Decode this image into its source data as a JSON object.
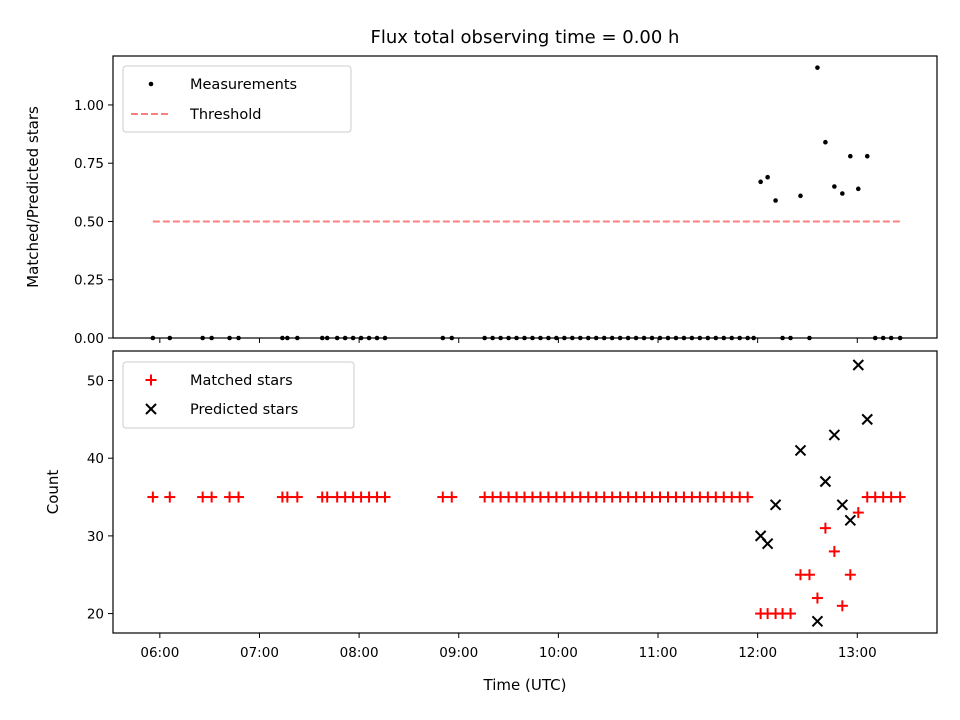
{
  "chart_data": [
    {
      "type": "scatter",
      "title": "Flux total observing time = 0.00 h",
      "xlabel": "",
      "ylabel": "Matched/Predicted stars",
      "xlim": [
        5.53,
        13.8
      ],
      "ylim": [
        0.0,
        1.21
      ],
      "yticks": [
        0.0,
        0.25,
        0.5,
        0.75,
        1.0
      ],
      "ytick_labels": [
        "0.00",
        "0.25",
        "0.50",
        "0.75",
        "1.00"
      ],
      "legend": {
        "position": "top-left",
        "entries": [
          "Measurements",
          "Threshold"
        ]
      },
      "series": [
        {
          "name": "Measurements",
          "marker": "dot",
          "color": "#000000",
          "x": [
            5.93,
            6.1,
            6.43,
            6.52,
            6.7,
            6.79,
            7.23,
            7.28,
            7.38,
            7.63,
            7.68,
            7.78,
            7.86,
            7.94,
            8.02,
            8.1,
            8.18,
            8.26,
            8.84,
            8.93,
            9.26,
            9.34,
            9.42,
            9.5,
            9.58,
            9.66,
            9.74,
            9.82,
            9.9,
            9.98,
            10.06,
            10.14,
            10.22,
            10.3,
            10.38,
            10.46,
            10.54,
            10.62,
            10.7,
            10.78,
            10.86,
            10.94,
            11.02,
            11.1,
            11.18,
            11.26,
            11.34,
            11.42,
            11.5,
            11.58,
            11.66,
            11.74,
            11.82,
            11.9,
            11.96,
            12.03,
            12.1,
            12.18,
            12.25,
            12.33,
            12.43,
            12.52,
            12.6,
            12.68,
            12.77,
            12.85,
            12.93,
            13.01,
            13.1,
            13.18,
            13.26,
            13.34,
            13.43
          ],
          "y": [
            0.0,
            0.0,
            0.0,
            0.0,
            0.0,
            0.0,
            0.0,
            0.0,
            0.0,
            0.0,
            0.0,
            0.0,
            0.0,
            0.0,
            0.0,
            0.0,
            0.0,
            0.0,
            0.0,
            0.0,
            0.0,
            0.0,
            0.0,
            0.0,
            0.0,
            0.0,
            0.0,
            0.0,
            0.0,
            0.0,
            0.0,
            0.0,
            0.0,
            0.0,
            0.0,
            0.0,
            0.0,
            0.0,
            0.0,
            0.0,
            0.0,
            0.0,
            0.0,
            0.0,
            0.0,
            0.0,
            0.0,
            0.0,
            0.0,
            0.0,
            0.0,
            0.0,
            0.0,
            0.0,
            0.0,
            0.67,
            0.69,
            0.59,
            0.0,
            0.0,
            0.61,
            0.0,
            1.16,
            0.84,
            0.65,
            0.62,
            0.78,
            0.64,
            0.78,
            0.0,
            0.0,
            0.0,
            0.0
          ]
        },
        {
          "name": "Threshold",
          "style": "dashed-line",
          "color": "#ff7f7f",
          "x": [
            5.93,
            13.43
          ],
          "y": [
            0.5,
            0.5
          ]
        }
      ]
    },
    {
      "type": "scatter",
      "title": "",
      "xlabel": "Time (UTC)",
      "ylabel": "Count",
      "xlim": [
        5.53,
        13.8
      ],
      "ylim": [
        17.5,
        53.8
      ],
      "yticks": [
        20,
        30,
        40,
        50
      ],
      "ytick_labels": [
        "20",
        "30",
        "40",
        "50"
      ],
      "xticks": [
        6,
        7,
        8,
        9,
        10,
        11,
        12,
        13
      ],
      "xtick_labels": [
        "06:00",
        "07:00",
        "08:00",
        "09:00",
        "10:00",
        "11:00",
        "12:00",
        "13:00"
      ],
      "legend": {
        "position": "top-left",
        "entries": [
          "Matched stars",
          "Predicted stars"
        ]
      },
      "series": [
        {
          "name": "Matched stars",
          "marker": "plus",
          "color": "#ff0000",
          "x": [
            5.93,
            6.1,
            6.43,
            6.52,
            6.7,
            6.79,
            7.23,
            7.28,
            7.38,
            7.63,
            7.68,
            7.78,
            7.86,
            7.94,
            8.02,
            8.1,
            8.18,
            8.26,
            8.84,
            8.93,
            9.26,
            9.34,
            9.42,
            9.5,
            9.58,
            9.66,
            9.74,
            9.82,
            9.9,
            9.98,
            10.06,
            10.14,
            10.22,
            10.3,
            10.38,
            10.46,
            10.54,
            10.62,
            10.7,
            10.78,
            10.86,
            10.94,
            11.02,
            11.1,
            11.18,
            11.26,
            11.34,
            11.42,
            11.5,
            11.58,
            11.66,
            11.74,
            11.82,
            11.9,
            12.03,
            12.1,
            12.18,
            12.25,
            12.33,
            12.43,
            12.52,
            12.6,
            12.68,
            12.77,
            12.85,
            12.93,
            13.01,
            13.1,
            13.18,
            13.26,
            13.34,
            13.43
          ],
          "y": [
            35,
            35,
            35,
            35,
            35,
            35,
            35,
            35,
            35,
            35,
            35,
            35,
            35,
            35,
            35,
            35,
            35,
            35,
            35,
            35,
            35,
            35,
            35,
            35,
            35,
            35,
            35,
            35,
            35,
            35,
            35,
            35,
            35,
            35,
            35,
            35,
            35,
            35,
            35,
            35,
            35,
            35,
            35,
            35,
            35,
            35,
            35,
            35,
            35,
            35,
            35,
            35,
            35,
            35,
            20,
            20,
            20,
            20,
            20,
            25,
            25,
            22,
            31,
            28,
            21,
            25,
            33,
            35,
            35,
            35,
            35,
            35
          ]
        },
        {
          "name": "Predicted stars",
          "marker": "x",
          "color": "#000000",
          "x": [
            12.03,
            12.1,
            12.18,
            12.43,
            12.6,
            12.68,
            12.77,
            12.85,
            12.93,
            13.01,
            13.1
          ],
          "y": [
            30,
            29,
            34,
            41,
            19,
            37,
            43,
            34,
            32,
            52,
            45
          ]
        }
      ]
    }
  ]
}
